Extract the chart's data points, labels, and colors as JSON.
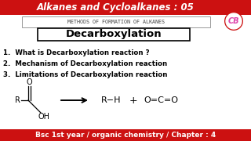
{
  "bg_color": "#ffffff",
  "header_bg": "#cc1111",
  "header_text": "Alkanes and Cycloalkanes : 05",
  "header_color": "#ffffff",
  "footer_bg": "#cc1111",
  "footer_text": "Bsc 1st year / organic chemistry / Chapter : 4",
  "footer_color": "#ffffff",
  "subheader_text": "METHODS OF FORMATION OF ALKANES",
  "subheader_border": "#999999",
  "title_text": "Decarboxylation",
  "title_border": "#000000",
  "items": [
    "1.  What is Decarboxylation reaction ?",
    "2.  Mechanism of Decarboxylation reaction",
    "3.  Limitations of Decarboxylation reaction"
  ],
  "item_color": "#000000",
  "cb_text": "CB",
  "cb_circle_color": "#cc1111",
  "cb_text_color": "#dd44aa",
  "reaction_rh": "R−H",
  "reaction_co2": "O=C=O",
  "plus": "+",
  "header_fontsize": 8.5,
  "footer_fontsize": 6.5,
  "item_fontsize": 6.2,
  "title_fontsize": 9.5
}
